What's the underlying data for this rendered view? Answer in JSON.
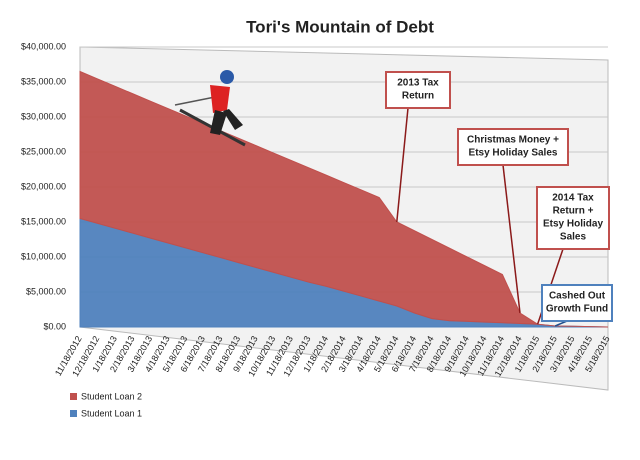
{
  "chart_data": {
    "type": "stacked-area",
    "title": "Tori's Mountain of Debt",
    "categories": [
      "11/18/2012",
      "12/18/2012",
      "1/18/2013",
      "2/18/2013",
      "3/18/2013",
      "4/18/2013",
      "5/18/2013",
      "6/18/2013",
      "7/18/2013",
      "8/18/2013",
      "9/18/2013",
      "10/18/2013",
      "11/18/2013",
      "12/18/2013",
      "1/18/2014",
      "2/18/2014",
      "3/18/2014",
      "4/18/2014",
      "5/18/2014",
      "6/18/2014",
      "7/18/2014",
      "8/18/2014",
      "9/18/2014",
      "10/18/2014",
      "11/18/2014",
      "12/18/2014",
      "1/18/2015",
      "2/18/2015",
      "3/18/2015",
      "4/18/2015",
      "5/18/2015"
    ],
    "series": [
      {
        "name": "Student Loan 1",
        "color": "#4f81bd",
        "values": [
          15500,
          14800,
          14100,
          13400,
          12700,
          12000,
          11300,
          10600,
          9900,
          9200,
          8500,
          7800,
          7100,
          6400,
          5800,
          5100,
          4400,
          3700,
          3000,
          2000,
          1200,
          900,
          800,
          700,
          600,
          500,
          400,
          150,
          100,
          50,
          0
        ]
      },
      {
        "name": "Student Loan 2",
        "color": "#c0504d",
        "values": [
          21000,
          20640,
          20280,
          19920,
          19560,
          19200,
          18850,
          18490,
          18130,
          17770,
          17410,
          17050,
          16690,
          16340,
          15880,
          15520,
          15160,
          14800,
          12000,
          11750,
          11300,
          10350,
          9200,
          8050,
          6900,
          1500,
          0,
          0,
          0,
          0,
          0
        ]
      }
    ],
    "ylim": [
      0,
      40000
    ],
    "yticks": [
      {
        "value": 0,
        "label": "$0.00"
      },
      {
        "value": 5000,
        "label": "$5,000.00"
      },
      {
        "value": 10000,
        "label": "$10,000.00"
      },
      {
        "value": 15000,
        "label": "$15,000.00"
      },
      {
        "value": 20000,
        "label": "$20,000.00"
      },
      {
        "value": 25000,
        "label": "$25,000.00"
      },
      {
        "value": 30000,
        "label": "$30,000.00"
      },
      {
        "value": 35000,
        "label": "$35,000.00"
      },
      {
        "value": 40000,
        "label": "$40,000.00"
      }
    ],
    "grid": true,
    "annotations": [
      {
        "lines": [
          "2013 Tax",
          "Return"
        ],
        "color": "#c0504d"
      },
      {
        "lines": [
          "Christmas Money +",
          "Etsy Holiday Sales"
        ],
        "color": "#c0504d"
      },
      {
        "lines": [
          "2014 Tax",
          "Return +",
          "Etsy Holiday",
          "Sales"
        ],
        "color": "#c0504d"
      },
      {
        "lines": [
          "Cashed Out",
          "Growth Fund"
        ],
        "color": "#4f81bd"
      }
    ]
  }
}
